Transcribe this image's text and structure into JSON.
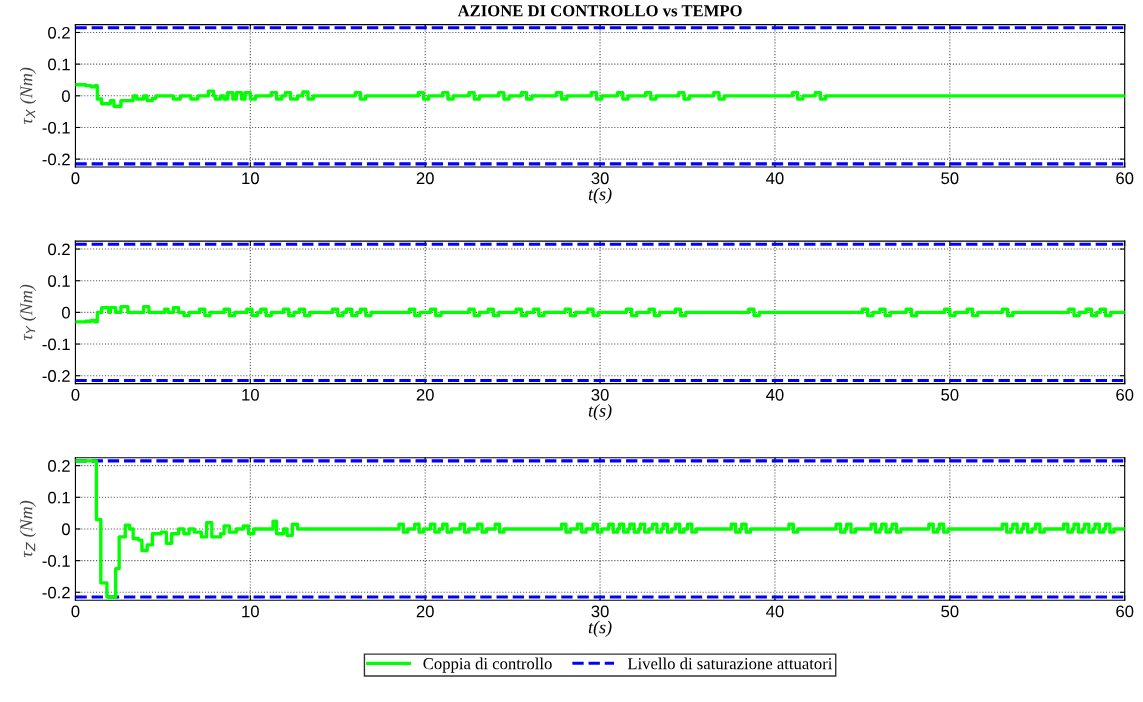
{
  "chart_data": [
    {
      "type": "step",
      "title": "AZIONE DI CONTROLLO vs TEMPO",
      "xlabel": "t(s)",
      "ylabel": "τ$_{X}$ (Nm)",
      "xlim": [
        0,
        60
      ],
      "xticks": [
        0,
        10,
        20,
        30,
        40,
        50,
        60
      ],
      "ylim": [
        -0.225,
        0.225
      ],
      "yticks": [
        -0.2,
        -0.1,
        0,
        0.1,
        0.2
      ],
      "grid": true,
      "series": [
        {
          "color": "#00ff00",
          "x": [
            0,
            0.6,
            0.9,
            1.1,
            1.25,
            1.5,
            2.0,
            2.2,
            2.6,
            3.3,
            3.5,
            3.9,
            4.1,
            4.4,
            4.6,
            5.6,
            6.0,
            6.6,
            7.0,
            7.6,
            7.9,
            8.0,
            8.3,
            8.5,
            8.7,
            9.0,
            9.2,
            9.5,
            9.7,
            10.0,
            10.3,
            11.2,
            11.5,
            11.8,
            12.0,
            12.3,
            12.7,
            13.0,
            13.3,
            13.6,
            16,
            16.3,
            16.6,
            19.6,
            19.9,
            20.2,
            21,
            21.3,
            21.6,
            22.5,
            22.8,
            23.1,
            24.2,
            24.5,
            24.8,
            25.5,
            25.8,
            26.1,
            27.5,
            27.8,
            28.1,
            29.5,
            29.8,
            30.1,
            31,
            31.3,
            31.6,
            32.6,
            32.9,
            33.2,
            34.5,
            34.8,
            35.1,
            36.5,
            36.8,
            37.1,
            41,
            41.3,
            41.6,
            42.3,
            42.6,
            42.9,
            60
          ],
          "values": [
            0.035,
            0.032,
            0.028,
            0.032,
            -0.01,
            -0.025,
            -0.015,
            -0.033,
            -0.015,
            0,
            -0.01,
            0,
            -0.015,
            -0.008,
            0,
            -0.01,
            0,
            -0.01,
            0,
            0.015,
            0,
            -0.01,
            0,
            -0.01,
            0.01,
            -0.01,
            0.01,
            -0.01,
            0.01,
            -0.01,
            0,
            0.01,
            -0.01,
            0,
            0.01,
            -0.01,
            0,
            0.012,
            -0.01,
            0,
            0.01,
            -0.01,
            0,
            0.01,
            -0.01,
            0,
            0.01,
            -0.01,
            0,
            0.01,
            -0.01,
            0,
            0.01,
            -0.01,
            0,
            0.01,
            -0.01,
            0,
            0.01,
            -0.01,
            0,
            0.01,
            -0.01,
            0,
            0.01,
            -0.01,
            0,
            0.01,
            -0.01,
            0,
            0.01,
            -0.01,
            0,
            0.01,
            -0.01,
            0,
            0.01,
            -0.01,
            0,
            0.01,
            -0.01,
            0,
            0
          ]
        }
      ],
      "ref_lines": [
        {
          "axis": "y",
          "value": 0.215,
          "color": "#0000ff",
          "line_style": "dashed"
        },
        {
          "axis": "y",
          "value": -0.215,
          "color": "#0000ff",
          "line_style": "dashed"
        }
      ]
    },
    {
      "type": "step",
      "xlabel": "t(s)",
      "ylabel": "τ$_{Y}$ (Nm)",
      "xlim": [
        0,
        60
      ],
      "xticks": [
        0,
        10,
        20,
        30,
        40,
        50,
        60
      ],
      "ylim": [
        -0.225,
        0.225
      ],
      "yticks": [
        -0.2,
        -0.1,
        0,
        0.1,
        0.2
      ],
      "grid": true,
      "series": [
        {
          "color": "#00ff00",
          "x": [
            0,
            0.6,
            0.9,
            1.1,
            1.25,
            1.5,
            1.9,
            2.0,
            2.3,
            2.6,
            3.0,
            3.9,
            4.2,
            5.1,
            5.3,
            5.6,
            5.9,
            6.2,
            6.5,
            7.1,
            7.4,
            7.7,
            8.5,
            8.8,
            9.1,
            9.8,
            10.1,
            10.4,
            10.6,
            10.9,
            11.2,
            11.9,
            12.2,
            12.5,
            12.8,
            13.1,
            13.4,
            14.7,
            15.0,
            15.3,
            15.5,
            15.8,
            16.1,
            16.3,
            16.6,
            16.9,
            19.1,
            19.4,
            19.7,
            20.3,
            20.6,
            20.9,
            22.5,
            22.8,
            23.1,
            23.6,
            23.9,
            24.2,
            25.2,
            25.5,
            25.8,
            26.2,
            26.5,
            26.8,
            28.0,
            28.3,
            28.6,
            29.3,
            29.6,
            29.9,
            31.5,
            31.8,
            32.1,
            32.8,
            33.1,
            33.4,
            34.3,
            34.6,
            34.9,
            38.5,
            38.8,
            39.1,
            45.0,
            45.3,
            45.6,
            46.0,
            46.3,
            46.6,
            47.5,
            47.8,
            48.1,
            49.7,
            50.0,
            50.3,
            51.0,
            51.3,
            51.6,
            53.0,
            53.3,
            53.6,
            56.8,
            57.1,
            57.4,
            57.8,
            58.1,
            58.4,
            58.6,
            58.9,
            59.2,
            60
          ],
          "values": [
            -0.03,
            -0.028,
            -0.025,
            -0.03,
            0,
            0.015,
            0,
            0.015,
            0,
            0.018,
            0,
            0.018,
            0,
            0.01,
            0,
            0.015,
            0,
            -0.01,
            0,
            0.01,
            -0.01,
            0,
            0.01,
            -0.01,
            0,
            0.01,
            -0.01,
            0,
            0.01,
            -0.01,
            0,
            0.01,
            -0.01,
            0,
            0.01,
            -0.01,
            0,
            0.01,
            -0.01,
            0,
            0.01,
            -0.01,
            0,
            0.01,
            -0.01,
            0,
            0.01,
            -0.01,
            0,
            0.01,
            -0.01,
            0,
            0.01,
            -0.01,
            0,
            0.01,
            -0.01,
            0,
            0.01,
            -0.01,
            0,
            0.01,
            -0.01,
            0,
            0.01,
            -0.01,
            0,
            0.01,
            -0.01,
            0,
            0.01,
            -0.01,
            0,
            0.01,
            -0.01,
            0,
            0.01,
            -0.01,
            0,
            0.01,
            -0.01,
            0,
            0.01,
            -0.01,
            0,
            0.01,
            -0.01,
            0,
            0.01,
            -0.01,
            0,
            0.01,
            -0.01,
            0,
            0.01,
            -0.01,
            0,
            0.01,
            -0.01,
            0,
            0.01,
            -0.01,
            0,
            0.01,
            -0.01,
            0,
            0.01,
            -0.01,
            0,
            0
          ]
        }
      ],
      "ref_lines": [
        {
          "axis": "y",
          "value": 0.215,
          "color": "#0000ff",
          "line_style": "dashed"
        },
        {
          "axis": "y",
          "value": -0.215,
          "color": "#0000ff",
          "line_style": "dashed"
        }
      ]
    },
    {
      "type": "step",
      "xlabel": "t(s)",
      "ylabel": "τ$_{Z}$ (Nm)",
      "xlim": [
        0,
        60
      ],
      "xticks": [
        0,
        10,
        20,
        30,
        40,
        50,
        60
      ],
      "ylim": [
        -0.225,
        0.225
      ],
      "yticks": [
        -0.2,
        -0.1,
        0,
        0.1,
        0.2
      ],
      "grid": true,
      "legend": "bottom",
      "series": [
        {
          "name": "Coppia di controllo",
          "color": "#00ff00",
          "x": [
            0,
            1.2,
            1.45,
            1.8,
            2.3,
            2.5,
            2.85,
            3.1,
            3.3,
            3.6,
            3.8,
            4.1,
            4.4,
            4.9,
            5.2,
            5.5,
            5.9,
            6.2,
            6.5,
            6.8,
            7.2,
            7.5,
            7.8,
            8.3,
            8.5,
            8.8,
            9.2,
            9.6,
            9.9,
            10.2,
            11.3,
            11.5,
            11.9,
            12.1,
            12.4,
            12.7,
            18.5,
            18.75,
            19.0,
            19.4,
            19.65,
            19.9,
            20.3,
            20.55,
            20.8,
            21.0,
            21.25,
            21.5,
            22.0,
            22.25,
            22.5,
            23.0,
            23.25,
            23.5,
            24.0,
            24.25,
            24.5,
            27.8,
            28.05,
            28.3,
            28.7,
            28.95,
            29.2,
            29.6,
            29.85,
            30.1,
            30.5,
            30.75,
            31.0,
            31.1,
            31.35,
            31.6,
            31.7,
            31.95,
            32.2,
            32.3,
            32.55,
            32.8,
            33.0,
            33.25,
            33.5,
            33.6,
            33.85,
            34.1,
            34.3,
            34.55,
            34.8,
            35.0,
            35.25,
            35.5,
            37.5,
            37.75,
            38.0,
            38.1,
            38.35,
            38.6,
            40.8,
            41.05,
            41.3,
            43.5,
            43.75,
            44.0,
            44.1,
            44.35,
            44.6,
            45.5,
            45.75,
            46.0,
            46.1,
            46.35,
            46.6,
            46.7,
            46.95,
            47.2,
            48.8,
            49.05,
            49.3,
            49.4,
            49.65,
            49.9,
            53.0,
            53.25,
            53.5,
            53.6,
            53.85,
            54.1,
            54.2,
            54.45,
            54.7,
            54.9,
            55.15,
            55.4,
            56.5,
            56.75,
            57.0,
            57.1,
            57.35,
            57.6,
            57.7,
            57.95,
            58.2,
            58.3,
            58.55,
            58.8,
            58.9,
            59.15,
            59.4,
            60
          ],
          "values": [
            0.215,
            0.03,
            -0.17,
            -0.215,
            -0.125,
            -0.025,
            0.012,
            0,
            -0.03,
            -0.035,
            -0.068,
            -0.05,
            -0.015,
            -0.01,
            -0.045,
            -0.015,
            0,
            -0.015,
            0,
            -0.01,
            -0.025,
            0.02,
            -0.025,
            -0.015,
            0.01,
            -0.01,
            0,
            0.01,
            -0.015,
            0,
            0.025,
            -0.015,
            0,
            -0.02,
            0.015,
            0,
            0.015,
            -0.01,
            0,
            0.015,
            -0.01,
            0,
            0.015,
            -0.01,
            0,
            0.015,
            -0.01,
            0,
            0.015,
            -0.01,
            0,
            0.015,
            -0.01,
            0,
            0.015,
            -0.01,
            0,
            0.015,
            -0.01,
            0,
            0.015,
            -0.01,
            0,
            0.015,
            -0.01,
            0,
            0.015,
            -0.01,
            0,
            0.015,
            -0.01,
            0,
            0.015,
            -0.01,
            0,
            0.015,
            -0.01,
            0,
            0.015,
            -0.01,
            0,
            0.015,
            -0.01,
            0,
            0.015,
            -0.01,
            0,
            0.015,
            -0.01,
            0,
            0.015,
            -0.01,
            0,
            0.015,
            -0.01,
            0,
            0.015,
            -0.01,
            0,
            0.015,
            -0.01,
            0,
            0.015,
            -0.01,
            0,
            0.015,
            -0.01,
            0,
            0.015,
            -0.01,
            0,
            0.015,
            -0.01,
            0,
            0.015,
            -0.01,
            0,
            0.015,
            -0.01,
            0,
            0.015,
            -0.01,
            0,
            0.015,
            -0.01,
            0,
            0.015,
            -0.01,
            0,
            0.015,
            -0.01,
            0,
            0.015,
            -0.01,
            0,
            0.015,
            -0.01,
            0,
            0.015,
            -0.01,
            0,
            0.015,
            -0.01,
            0,
            0.015,
            -0.01,
            0,
            0
          ]
        }
      ],
      "ref_lines": [
        {
          "axis": "y",
          "value": 0.215,
          "color": "#0000ff",
          "line_style": "dashed",
          "label": "Livello di saturazione attuatori"
        },
        {
          "axis": "y",
          "value": -0.215,
          "color": "#0000ff",
          "line_style": "dashed"
        }
      ]
    }
  ]
}
